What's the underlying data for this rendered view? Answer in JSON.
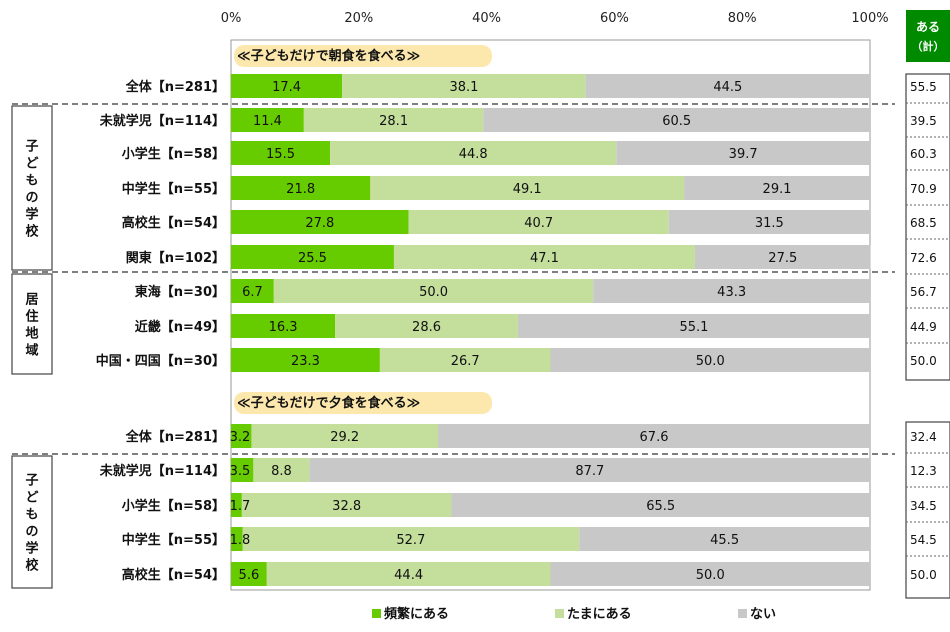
{
  "chart_data": {
    "type": "bar",
    "stacked": true,
    "orientation": "horizontal",
    "x_ticks": [
      "0%",
      "20%",
      "40%",
      "60%",
      "80%",
      "100%"
    ],
    "xlim": [
      0,
      100
    ],
    "legend_position": "bottom",
    "series_names": [
      "頻繁にある",
      "たまにある",
      "ない"
    ],
    "colors": {
      "frequent": "#66cc00",
      "sometimes": "#c4de9c",
      "never": "#c8c8c8",
      "total_header": "#008a00",
      "section_banner": "#fce6a4"
    },
    "total_header": [
      "ある",
      "（計）"
    ],
    "sections": [
      {
        "title": "≪子どもだけで朝食を食べる≫",
        "rows": [
          {
            "label": "全体【n=281】",
            "values": [
              17.4,
              38.1,
              44.5
            ],
            "total": 55.5
          },
          {
            "label": "未就学児【n=114】",
            "values": [
              11.4,
              28.1,
              60.5
            ],
            "total": 39.5
          },
          {
            "label": "小学生【n=58】",
            "values": [
              15.5,
              44.8,
              39.7
            ],
            "total": 60.3
          },
          {
            "label": "中学生【n=55】",
            "values": [
              21.8,
              49.1,
              29.1
            ],
            "total": 70.9
          },
          {
            "label": "高校生【n=54】",
            "values": [
              27.8,
              40.7,
              31.5
            ],
            "total": 68.5
          },
          {
            "label": "関東【n=102】",
            "values": [
              25.5,
              47.1,
              27.5
            ],
            "total": 72.6
          },
          {
            "label": "東海【n=30】",
            "values": [
              6.7,
              50.0,
              43.3
            ],
            "total": 56.7
          },
          {
            "label": "近畿【n=49】",
            "values": [
              16.3,
              28.6,
              55.1
            ],
            "total": 44.9
          },
          {
            "label": "中国・四国【n=30】",
            "values": [
              23.3,
              26.7,
              50.0
            ],
            "total": 50.0
          }
        ]
      },
      {
        "title": "≪子どもだけで夕食を食べる≫",
        "rows": [
          {
            "label": "全体【n=281】",
            "values": [
              3.2,
              29.2,
              67.6
            ],
            "total": 32.4
          },
          {
            "label": "未就学児【n=114】",
            "values": [
              3.5,
              8.8,
              87.7
            ],
            "total": 12.3
          },
          {
            "label": "小学生【n=58】",
            "values": [
              1.7,
              32.8,
              65.5
            ],
            "total": 34.5
          },
          {
            "label": "中学生【n=55】",
            "values": [
              1.8,
              52.7,
              45.5
            ],
            "total": 54.5
          },
          {
            "label": "高校生【n=54】",
            "values": [
              5.6,
              44.4,
              50.0
            ],
            "total": 50.0
          }
        ]
      }
    ],
    "groups": [
      {
        "label": "子どもの学校"
      },
      {
        "label": "居住地域"
      },
      {
        "label": "子どもの学校"
      }
    ]
  }
}
